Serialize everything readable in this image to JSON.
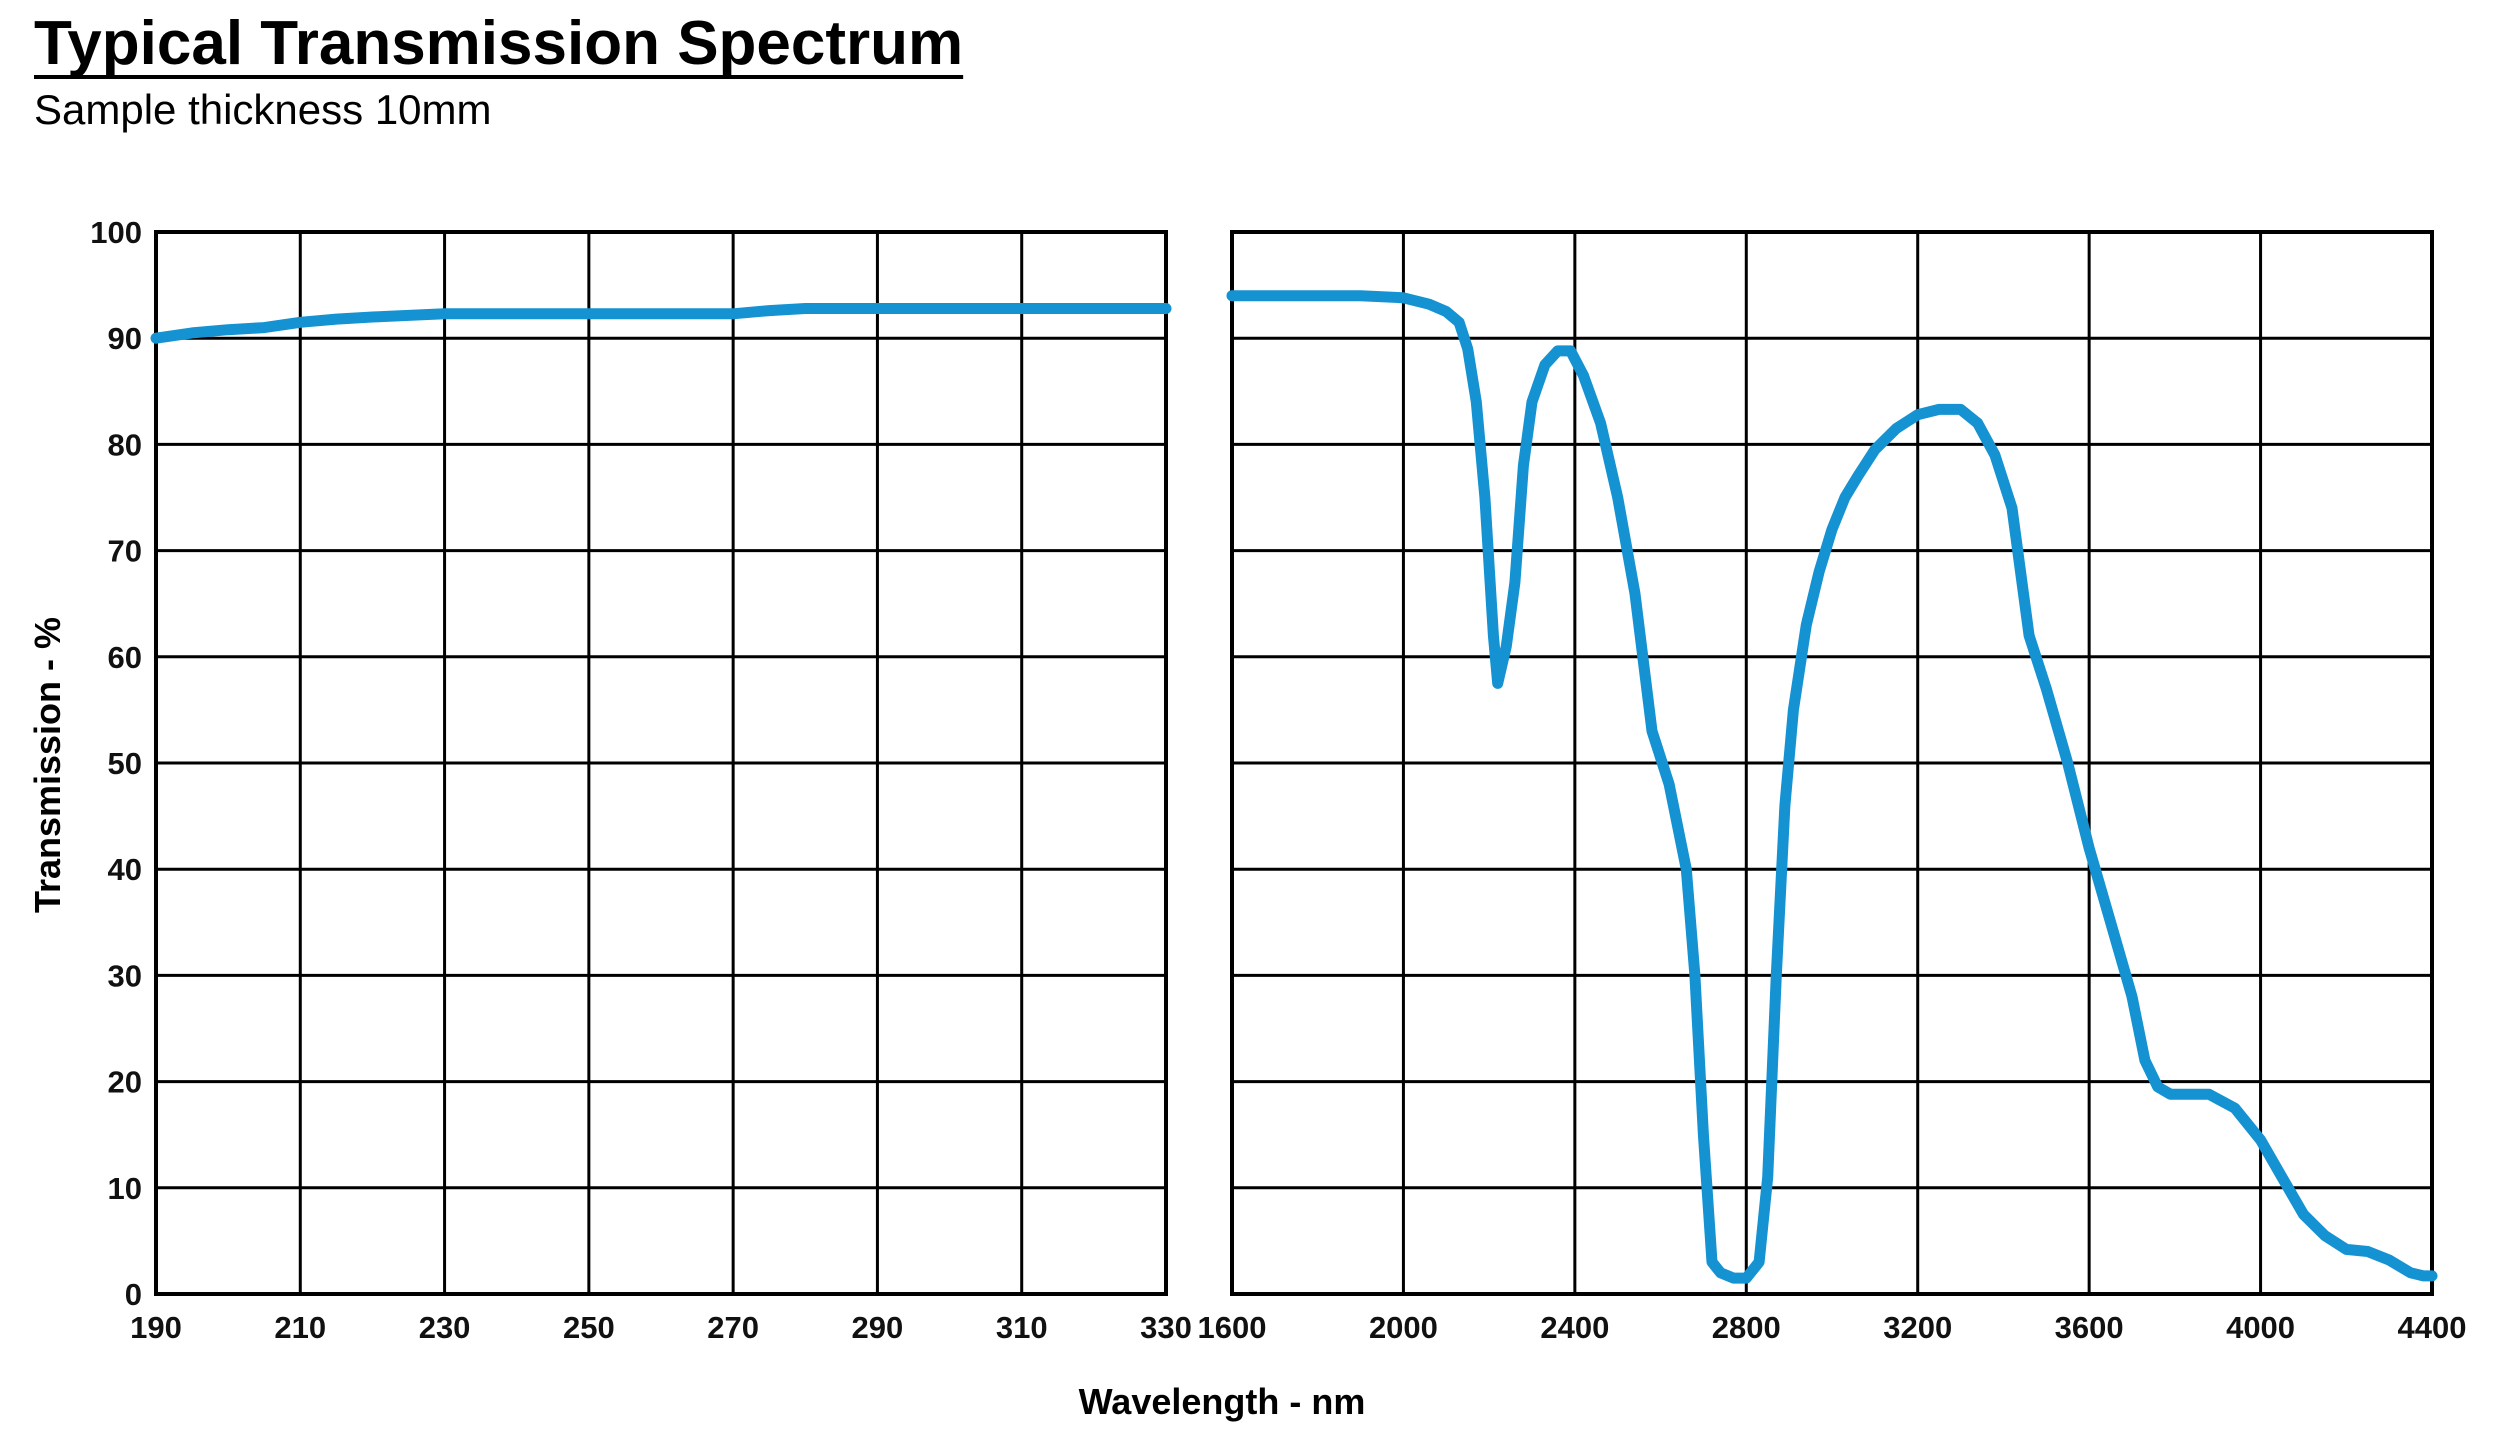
{
  "colors": {
    "curve": "#1592d2",
    "grid": "#000000",
    "background": "#ffffff"
  },
  "chart_data": {
    "type": "line",
    "title": "Typical Transmission Spectrum",
    "subtitle": "Sample thickness 10mm",
    "xlabel": "Wavelength - nm",
    "ylabel": "Transmission - %",
    "ylim": [
      0,
      100
    ],
    "yticks": [
      0,
      10,
      20,
      30,
      40,
      50,
      60,
      70,
      80,
      90,
      100
    ],
    "grid": true,
    "panels": [
      {
        "xlim": [
          190,
          330
        ],
        "xticks": [
          190,
          210,
          230,
          250,
          270,
          290,
          310,
          330
        ],
        "series": [
          {
            "x": [
              190,
              195,
              200,
              205,
              210,
              215,
              220,
              230,
              240,
              250,
              260,
              270,
              275,
              280,
              290,
              300,
              310,
              320,
              330
            ],
            "y": [
              90.0,
              90.5,
              90.8,
              91.0,
              91.5,
              91.8,
              92.0,
              92.3,
              92.3,
              92.3,
              92.3,
              92.3,
              92.6,
              92.8,
              92.8,
              92.8,
              92.8,
              92.8,
              92.8
            ]
          }
        ]
      },
      {
        "xlim": [
          1600,
          4400
        ],
        "xticks": [
          1600,
          2000,
          2400,
          2800,
          3200,
          3600,
          4000,
          4400
        ],
        "series": [
          {
            "x": [
              1600,
              1700,
              1800,
              1900,
              2000,
              2060,
              2100,
              2130,
              2150,
              2170,
              2190,
              2210,
              2220,
              2240,
              2260,
              2280,
              2300,
              2330,
              2360,
              2390,
              2420,
              2460,
              2500,
              2540,
              2580,
              2620,
              2660,
              2680,
              2700,
              2720,
              2740,
              2770,
              2800,
              2830,
              2850,
              2870,
              2890,
              2910,
              2940,
              2970,
              3000,
              3030,
              3060,
              3100,
              3150,
              3200,
              3250,
              3300,
              3340,
              3380,
              3420,
              3460,
              3500,
              3550,
              3600,
              3650,
              3700,
              3730,
              3760,
              3790,
              3830,
              3880,
              3940,
              4000,
              4050,
              4100,
              4150,
              4200,
              4250,
              4300,
              4350,
              4380,
              4400
            ],
            "y": [
              94.0,
              94.0,
              94.0,
              94.0,
              93.8,
              93.2,
              92.5,
              91.5,
              89.0,
              84.0,
              75.0,
              62.0,
              57.5,
              61.0,
              67.0,
              78.0,
              84.0,
              87.5,
              88.8,
              88.8,
              86.5,
              82.0,
              75.0,
              66.0,
              53.0,
              48.0,
              40.0,
              30.0,
              15.0,
              3.0,
              2.0,
              1.5,
              1.5,
              3.0,
              11.0,
              30.0,
              46.0,
              55.0,
              63.0,
              68.0,
              72.0,
              75.0,
              77.0,
              79.5,
              81.5,
              82.8,
              83.3,
              83.3,
              82.0,
              79.0,
              74.0,
              62.0,
              57.0,
              50.0,
              42.0,
              35.0,
              28.0,
              22.0,
              19.5,
              18.8,
              18.8,
              18.8,
              17.5,
              14.5,
              11.0,
              7.5,
              5.5,
              4.2,
              4.0,
              3.2,
              2.0,
              1.7,
              1.7
            ]
          }
        ]
      }
    ]
  }
}
